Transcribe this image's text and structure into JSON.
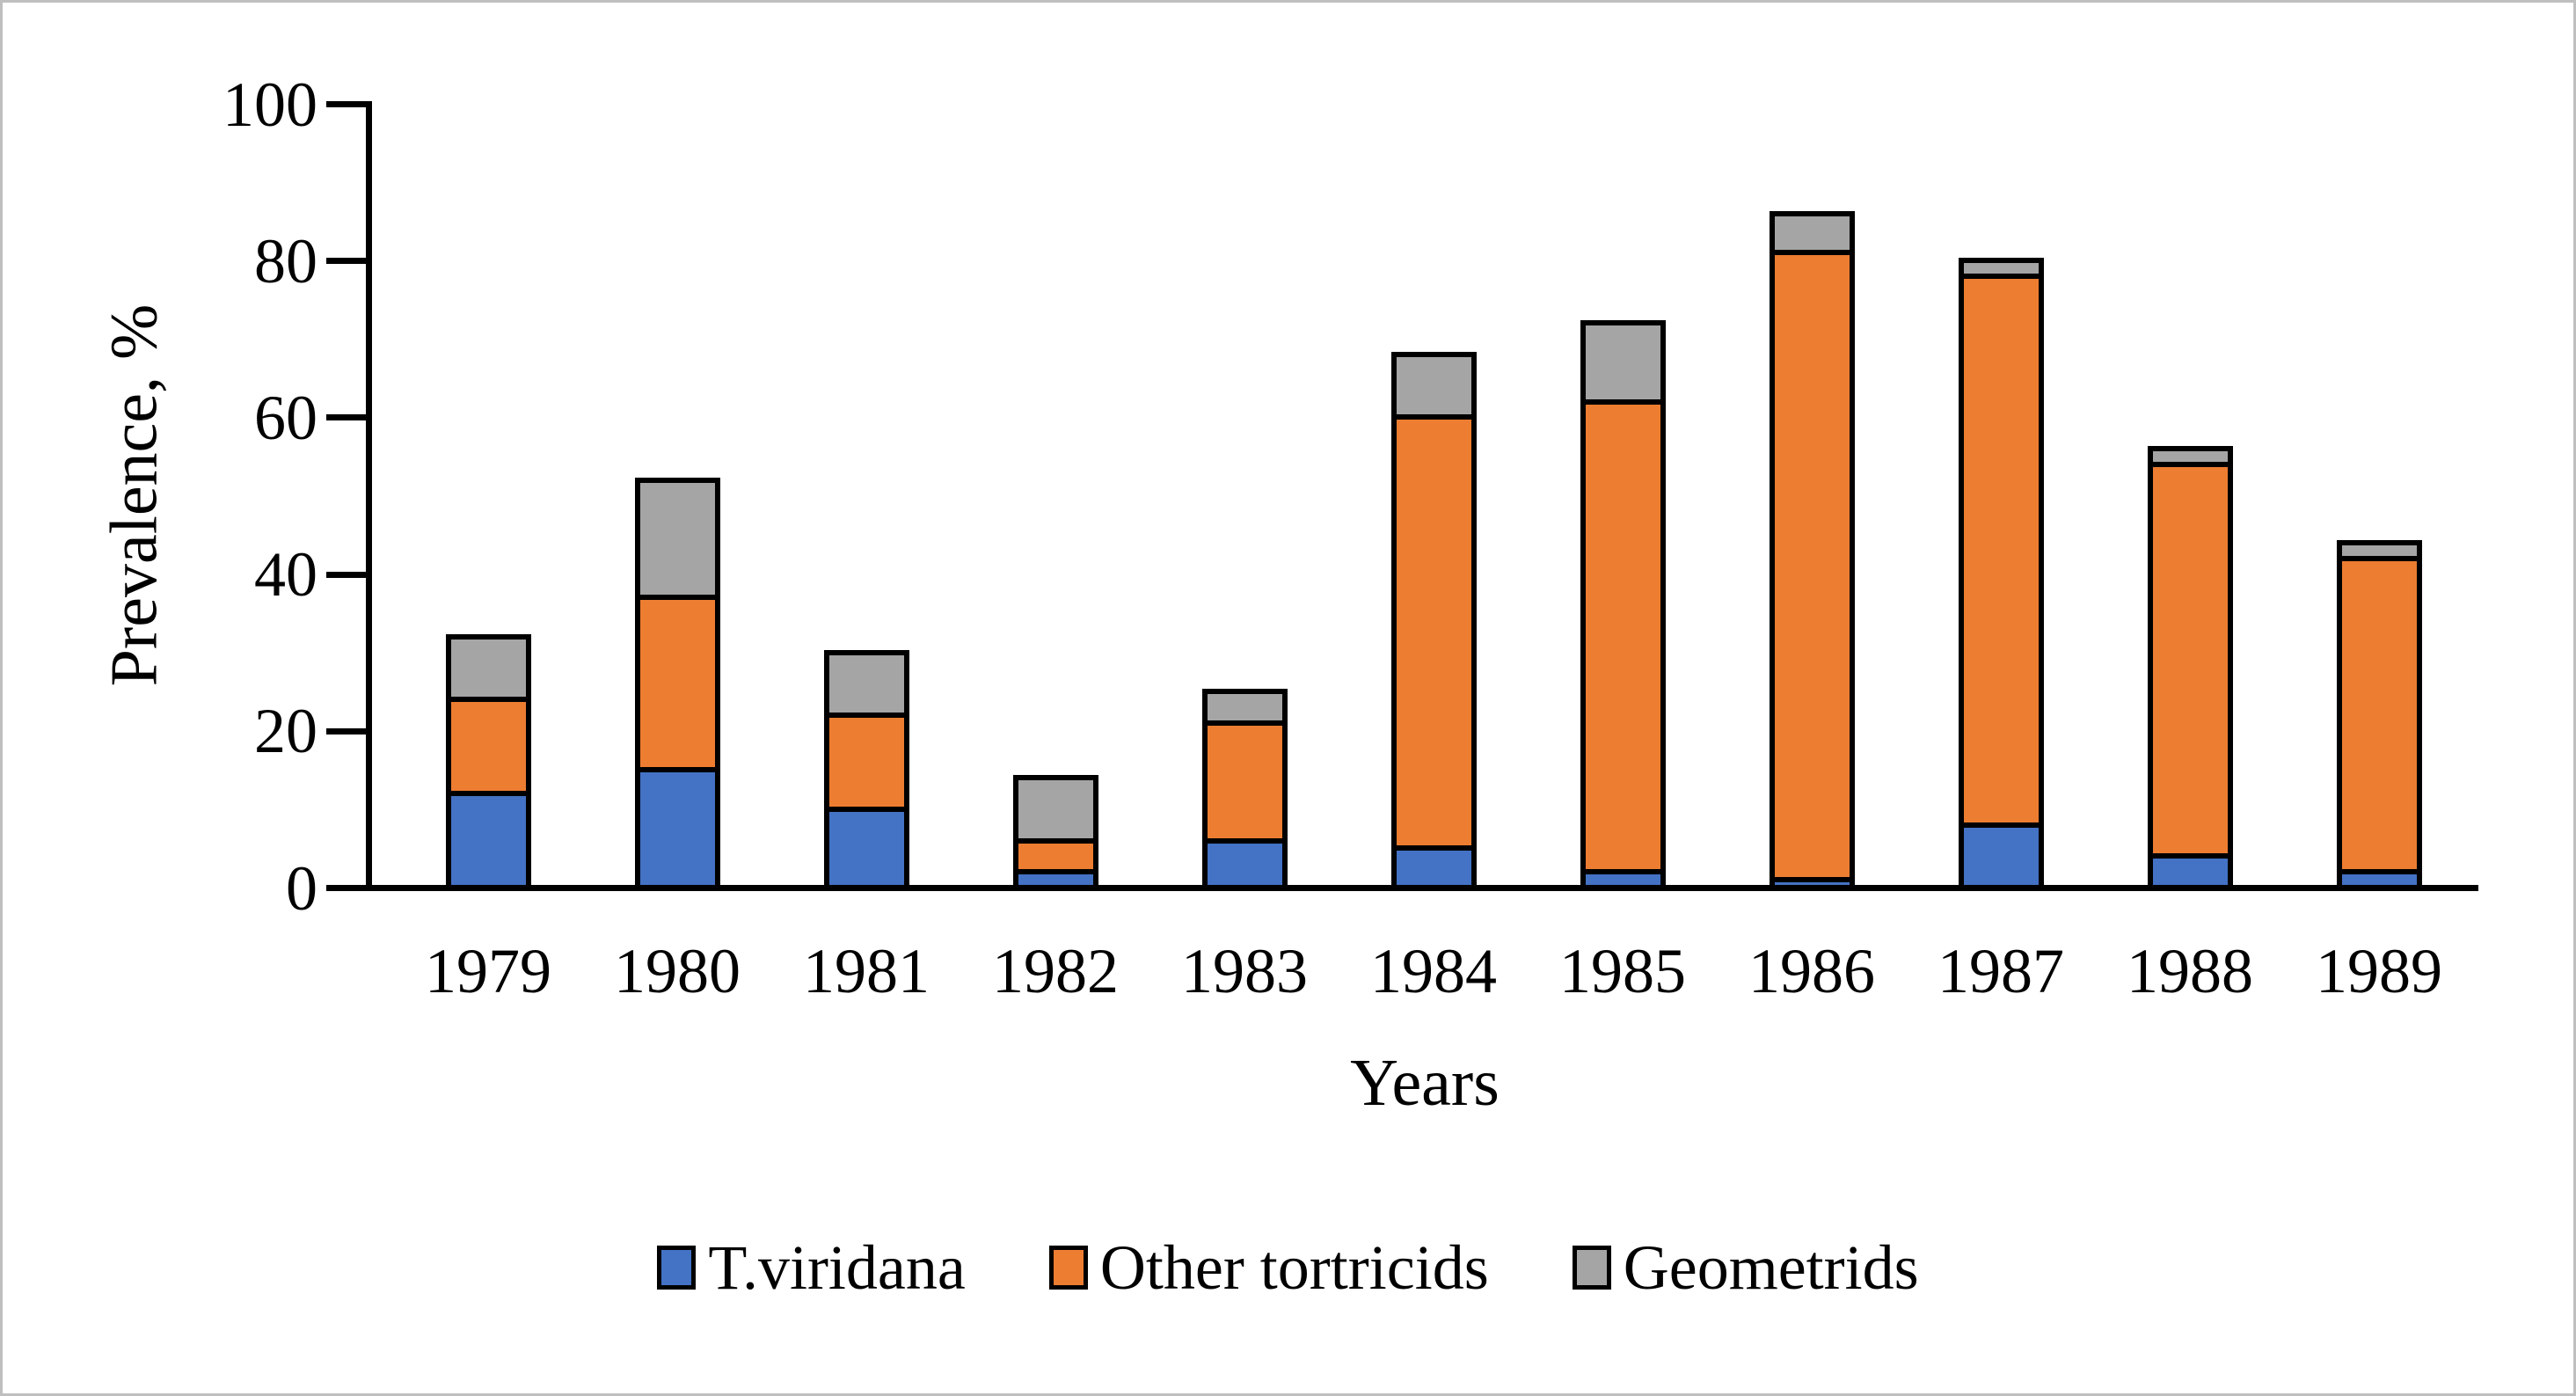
{
  "chart_data": {
    "type": "bar",
    "stacked": true,
    "title": "",
    "categories": [
      "1979",
      "1980",
      "1981",
      "1982",
      "1983",
      "1984",
      "1985",
      "1986",
      "1987",
      "1988",
      "1989"
    ],
    "series": [
      {
        "name": "T.viridana",
        "color": "#4472C4",
        "values": [
          12,
          15,
          10,
          2,
          6,
          5,
          2,
          1,
          8,
          4,
          2
        ]
      },
      {
        "name": "Other tortricids",
        "color": "#ED7D31",
        "values": [
          12,
          22,
          12,
          4,
          15,
          55,
          60,
          80,
          70,
          50,
          40
        ]
      },
      {
        "name": "Geometrids",
        "color": "#A5A5A5",
        "values": [
          8,
          15,
          8,
          8,
          4,
          8,
          10,
          5,
          2,
          2,
          2
        ]
      }
    ],
    "stack_totals": [
      32,
      52,
      30,
      14,
      25,
      68,
      72,
      86,
      80,
      56,
      44
    ],
    "xlabel": "Years",
    "ylabel": "Prevalence, %",
    "ylim": [
      0,
      100
    ],
    "yticks": [
      0,
      20,
      40,
      60,
      80,
      100
    ],
    "grid": false,
    "legend_position": "bottom",
    "bar_border_color": "#000000",
    "axis_color": "#000000",
    "background": "#FFFFFF",
    "frame_border_color": "#BFBFBF"
  }
}
